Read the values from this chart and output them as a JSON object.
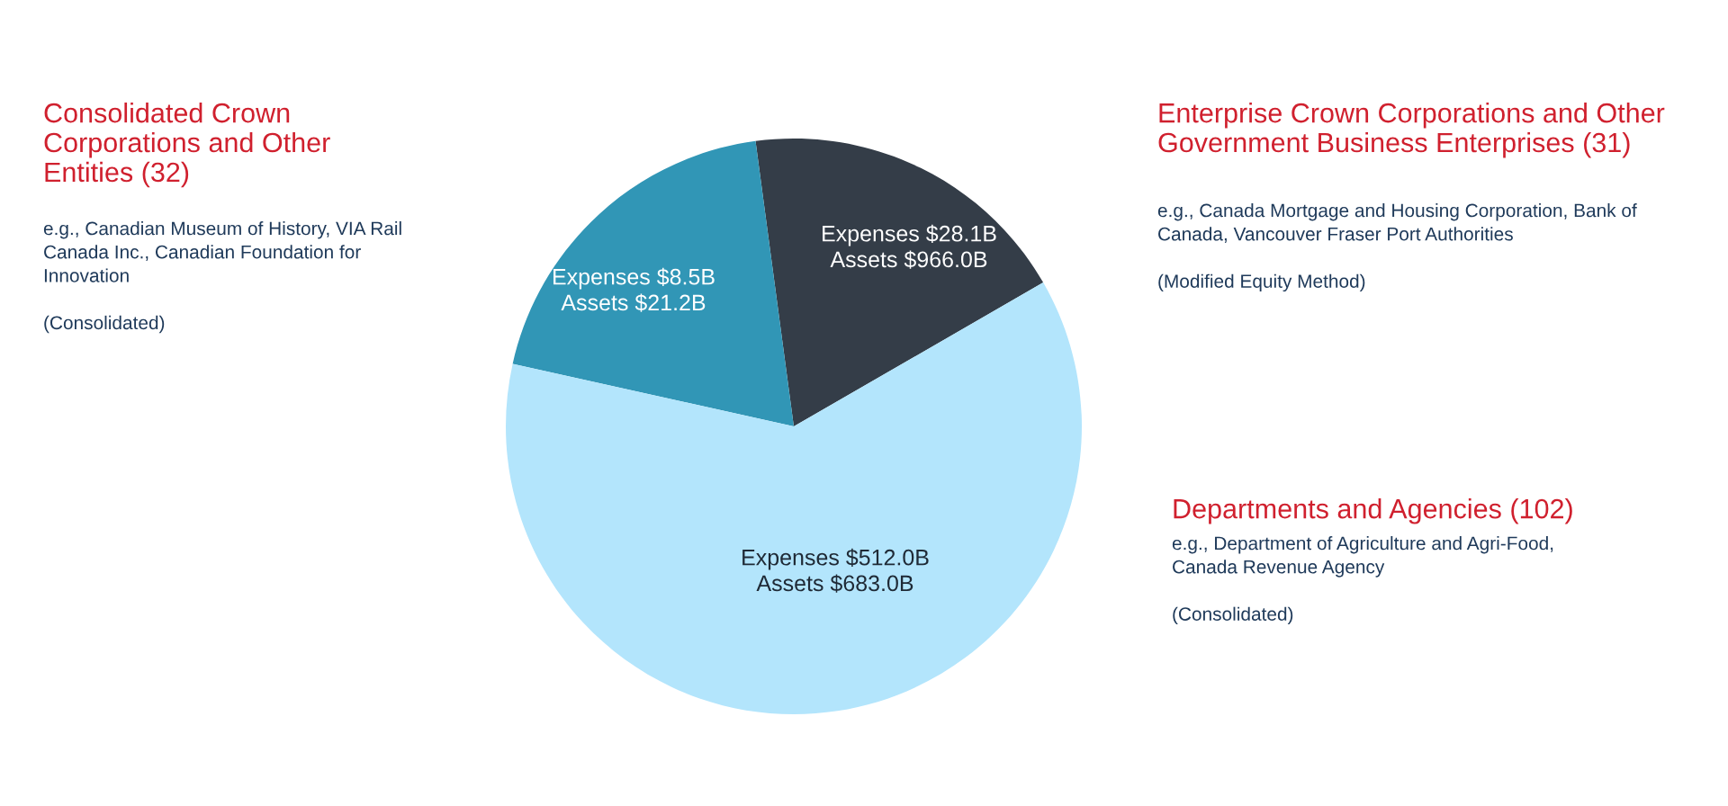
{
  "chart_data": {
    "type": "pie",
    "categories": [
      "Enterprise Crown Corporations and Other\nGovernment Business Enterprises (31)",
      "Consolidated Crown\nCorporations and Other\nEntities (32)",
      "Departments and Agencies (102)"
    ],
    "values": [
      31,
      32,
      102
    ],
    "colors": [
      "#343d48",
      "#3196b6",
      "#b3e5fc"
    ],
    "annotations": [
      "Expenses $28.1B\nAssets $966.0B",
      "Expenses $8.5B\nAssets $21.2B",
      "Expenses $512.0B\nAssets $683.0B",
      "e.g., Canada Mortgage and Housing Corporation, Bank of\nCanada, Vancouver Fraser Port Authorities\n\n(Modified Equity Method)",
      "e.g., Canadian Museum of History, VIA Rail\nCanada Inc., Canadian Foundation for\nInnovation\n\n(Consolidated)",
      "e.g., Department of Agriculture and Agri-Food,\nCanada Revenue Agency\n\n(Consolidated)"
    ]
  }
}
